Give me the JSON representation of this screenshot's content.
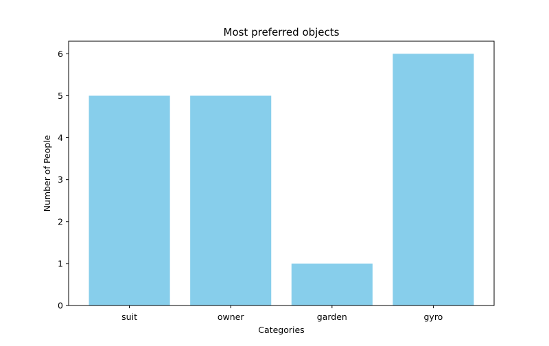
{
  "chart_data": {
    "type": "bar",
    "title": "Most preferred objects",
    "xlabel": "Categories",
    "ylabel": "Number of People",
    "categories": [
      "suit",
      "owner",
      "garden",
      "gyro"
    ],
    "values": [
      5,
      5,
      1,
      6
    ],
    "ylim": [
      0,
      6.3
    ],
    "yticks": [
      0,
      1,
      2,
      3,
      4,
      5,
      6
    ],
    "bar_color": "#87ceeb",
    "grid": false,
    "legend": "none"
  }
}
